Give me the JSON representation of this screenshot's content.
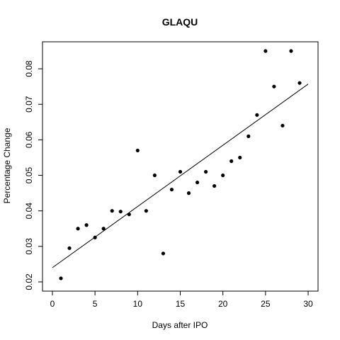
{
  "chart_data": {
    "type": "scatter",
    "title": "GLAQU",
    "xlabel": "Days after IPO",
    "ylabel": "Percentage Change",
    "xlim": [
      0,
      30
    ],
    "ylim": [
      0.02,
      0.085
    ],
    "grid": false,
    "legend": "none",
    "point_color": "#000000",
    "xticks": [
      "0",
      "5",
      "10",
      "15",
      "20",
      "25",
      "30"
    ],
    "yticks": [
      "0.02",
      "0.03",
      "0.04",
      "0.05",
      "0.06",
      "0.07",
      "0.08"
    ],
    "points": [
      {
        "x": 1,
        "y": 0.021
      },
      {
        "x": 2,
        "y": 0.0295
      },
      {
        "x": 3,
        "y": 0.035
      },
      {
        "x": 4,
        "y": 0.036
      },
      {
        "x": 5,
        "y": 0.0325
      },
      {
        "x": 6,
        "y": 0.035
      },
      {
        "x": 7,
        "y": 0.04
      },
      {
        "x": 8,
        "y": 0.0398
      },
      {
        "x": 9,
        "y": 0.039
      },
      {
        "x": 10,
        "y": 0.057
      },
      {
        "x": 11,
        "y": 0.04
      },
      {
        "x": 12,
        "y": 0.05
      },
      {
        "x": 13,
        "y": 0.028
      },
      {
        "x": 14,
        "y": 0.046
      },
      {
        "x": 15,
        "y": 0.051
      },
      {
        "x": 16,
        "y": 0.045
      },
      {
        "x": 17,
        "y": 0.048
      },
      {
        "x": 18,
        "y": 0.051
      },
      {
        "x": 19,
        "y": 0.047
      },
      {
        "x": 20,
        "y": 0.05
      },
      {
        "x": 21,
        "y": 0.054
      },
      {
        "x": 22,
        "y": 0.055
      },
      {
        "x": 23,
        "y": 0.061
      },
      {
        "x": 24,
        "y": 0.067
      },
      {
        "x": 25,
        "y": 0.085
      },
      {
        "x": 26,
        "y": 0.075
      },
      {
        "x": 27,
        "y": 0.064
      },
      {
        "x": 28,
        "y": 0.085
      },
      {
        "x": 29,
        "y": 0.076
      }
    ],
    "trendline": {
      "x0": 0,
      "y0": 0.024,
      "x1": 30,
      "y1": 0.0757
    }
  }
}
